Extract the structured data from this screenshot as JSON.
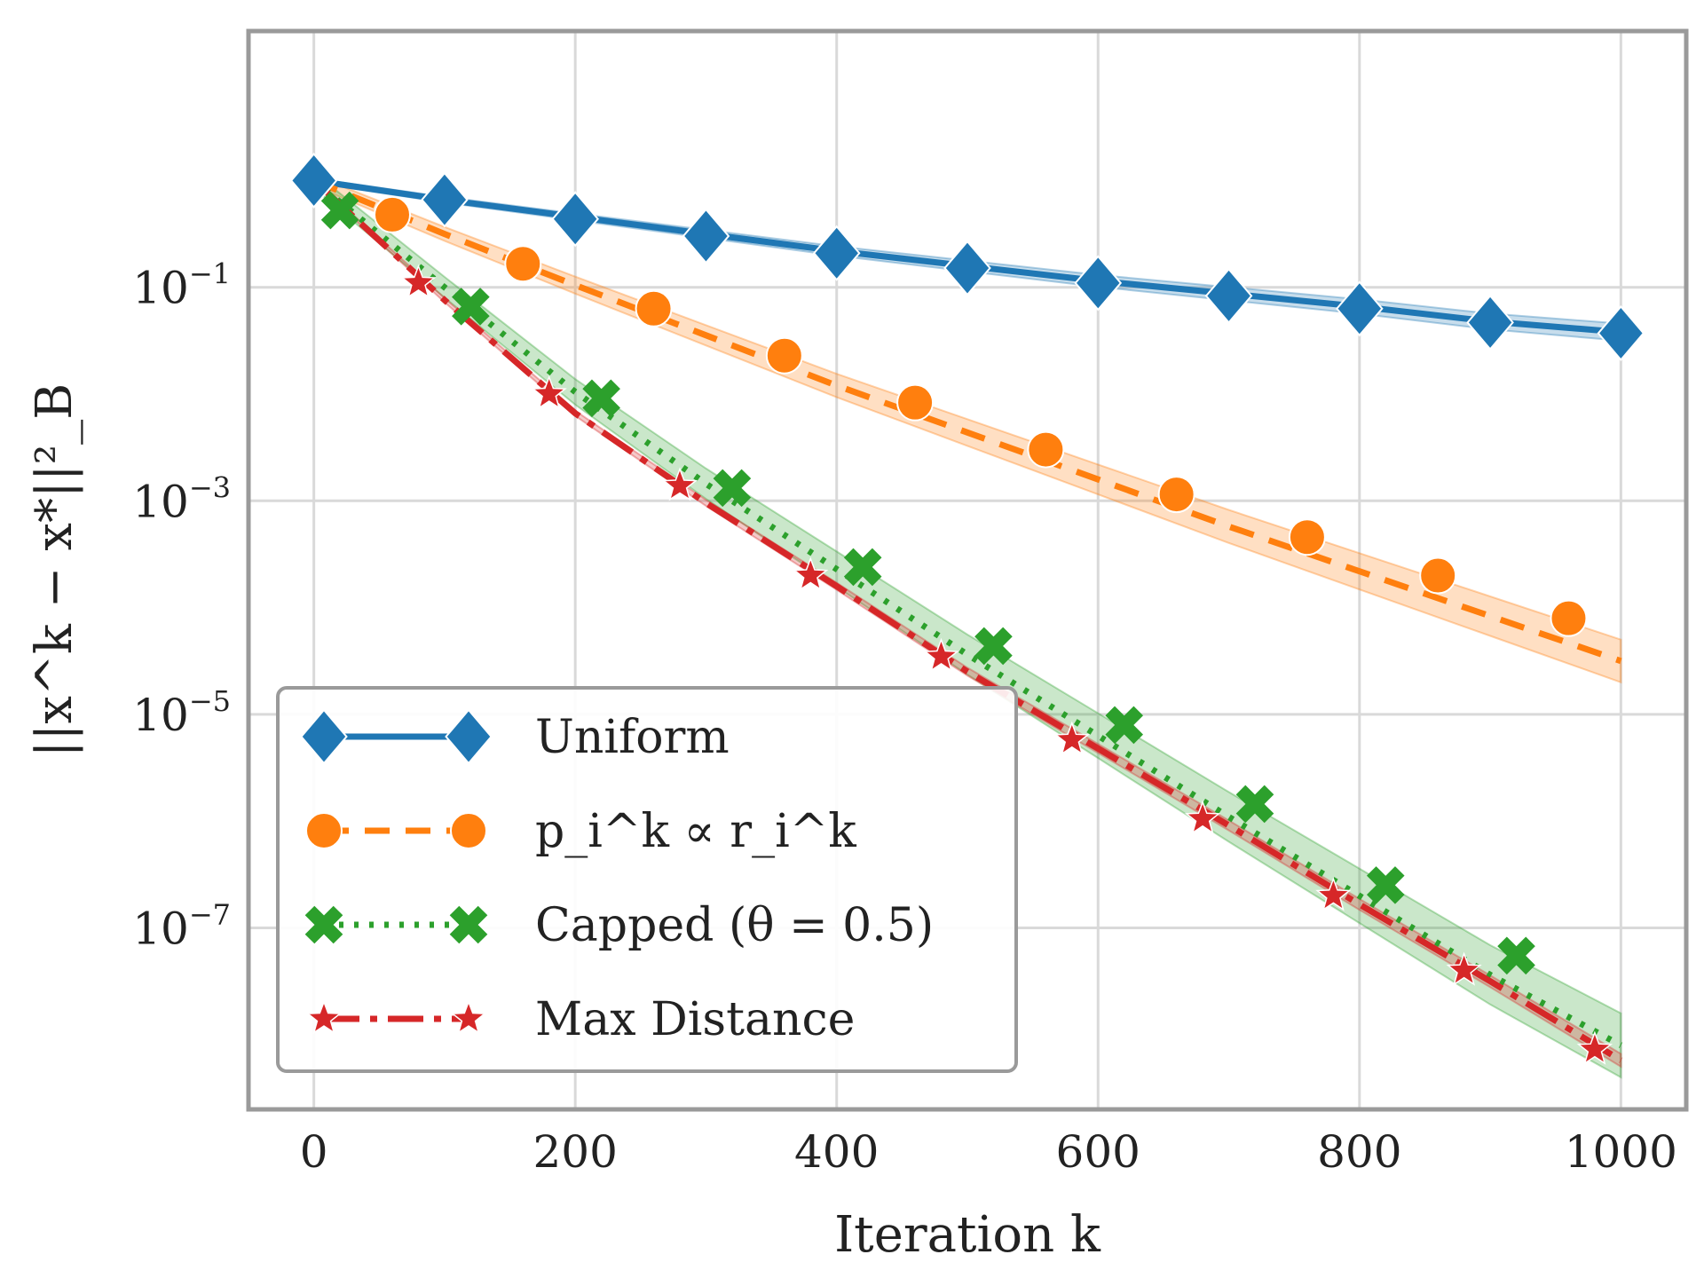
{
  "chart_data": {
    "type": "line",
    "xlabel": "Iteration k",
    "ylabel": "||x^k − x*||²_B",
    "xlim": [
      -50,
      1050
    ],
    "ylim_log10": [
      -8.7,
      1.4
    ],
    "yscale": "log",
    "grid": true,
    "legend_position": "lower-left",
    "x_ticks": [
      {
        "value": 0,
        "label": "0"
      },
      {
        "value": 200,
        "label": "200"
      },
      {
        "value": 400,
        "label": "400"
      },
      {
        "value": 600,
        "label": "600"
      },
      {
        "value": 800,
        "label": "800"
      },
      {
        "value": 1000,
        "label": "1000"
      }
    ],
    "y_ticks": [
      {
        "exp": -1,
        "base": "10",
        "sup": "−1"
      },
      {
        "exp": -3,
        "base": "10",
        "sup": "−3"
      },
      {
        "exp": -5,
        "base": "10",
        "sup": "−5"
      },
      {
        "exp": -7,
        "base": "10",
        "sup": "−7"
      }
    ],
    "series": [
      {
        "name": "Uniform",
        "color": "#1f77b4",
        "dash": "",
        "marker": "diamond",
        "band": 0.08,
        "curve": [
          [
            0,
            0.0
          ],
          [
            100,
            -0.18
          ],
          [
            200,
            -0.34
          ],
          [
            300,
            -0.5
          ],
          [
            400,
            -0.66
          ],
          [
            500,
            -0.8
          ],
          [
            600,
            -0.94
          ],
          [
            700,
            -1.06
          ],
          [
            800,
            -1.18
          ],
          [
            900,
            -1.32
          ],
          [
            1000,
            -1.42
          ]
        ],
        "markers": [
          [
            0,
            0.0
          ],
          [
            100,
            -0.18
          ],
          [
            200,
            -0.36
          ],
          [
            300,
            -0.52
          ],
          [
            400,
            -0.68
          ],
          [
            500,
            -0.82
          ],
          [
            600,
            -0.96
          ],
          [
            700,
            -1.08
          ],
          [
            800,
            -1.2
          ],
          [
            900,
            -1.33
          ],
          [
            1000,
            -1.43
          ]
        ]
      },
      {
        "name": "p_i^k ∝ r_i^k",
        "color": "#ff7f0e",
        "dash": "28,18",
        "marker": "circle",
        "band": 0.2,
        "curve": [
          [
            0,
            0.0
          ],
          [
            100,
            -0.5
          ],
          [
            200,
            -0.98
          ],
          [
            300,
            -1.45
          ],
          [
            400,
            -1.92
          ],
          [
            500,
            -2.36
          ],
          [
            600,
            -2.8
          ],
          [
            700,
            -3.24
          ],
          [
            800,
            -3.66
          ],
          [
            900,
            -4.08
          ],
          [
            1000,
            -4.5
          ]
        ],
        "markers": [
          [
            60,
            -0.32
          ],
          [
            160,
            -0.78
          ],
          [
            260,
            -1.2
          ],
          [
            360,
            -1.64
          ],
          [
            460,
            -2.08
          ],
          [
            560,
            -2.52
          ],
          [
            660,
            -2.94
          ],
          [
            760,
            -3.34
          ],
          [
            860,
            -3.7
          ],
          [
            960,
            -4.1
          ]
        ]
      },
      {
        "name": "Capped (θ = 0.5)",
        "color": "#2ca02c",
        "dash": "5,12",
        "marker": "x",
        "band": 0.3,
        "curve": [
          [
            0,
            0.0
          ],
          [
            100,
            -1.0
          ],
          [
            200,
            -1.98
          ],
          [
            300,
            -2.84
          ],
          [
            400,
            -3.64
          ],
          [
            500,
            -4.44
          ],
          [
            600,
            -5.2
          ],
          [
            700,
            -5.96
          ],
          [
            800,
            -6.7
          ],
          [
            900,
            -7.44
          ],
          [
            1000,
            -8.1
          ]
        ],
        "markers": [
          [
            20,
            -0.28
          ],
          [
            120,
            -1.18
          ],
          [
            220,
            -2.04
          ],
          [
            320,
            -2.88
          ],
          [
            420,
            -3.62
          ],
          [
            520,
            -4.36
          ],
          [
            620,
            -5.1
          ],
          [
            720,
            -5.84
          ],
          [
            820,
            -6.6
          ],
          [
            920,
            -7.26
          ]
        ]
      },
      {
        "name": "Max Distance",
        "color": "#d62728",
        "dash": "40,12,8,12",
        "marker": "star",
        "band": 0.06,
        "curve": [
          [
            0,
            0.0
          ],
          [
            100,
            -1.12
          ],
          [
            200,
            -2.18
          ],
          [
            300,
            -3.02
          ],
          [
            400,
            -3.8
          ],
          [
            500,
            -4.6
          ],
          [
            600,
            -5.32
          ],
          [
            700,
            -6.04
          ],
          [
            800,
            -6.78
          ],
          [
            900,
            -7.5
          ],
          [
            1000,
            -8.24
          ]
        ],
        "markers": [
          [
            80,
            -0.96
          ],
          [
            180,
            -2.0
          ],
          [
            280,
            -2.86
          ],
          [
            380,
            -3.7
          ],
          [
            480,
            -4.46
          ],
          [
            580,
            -5.24
          ],
          [
            680,
            -5.98
          ],
          [
            780,
            -6.7
          ],
          [
            880,
            -7.4
          ],
          [
            980,
            -8.14
          ]
        ]
      }
    ]
  }
}
